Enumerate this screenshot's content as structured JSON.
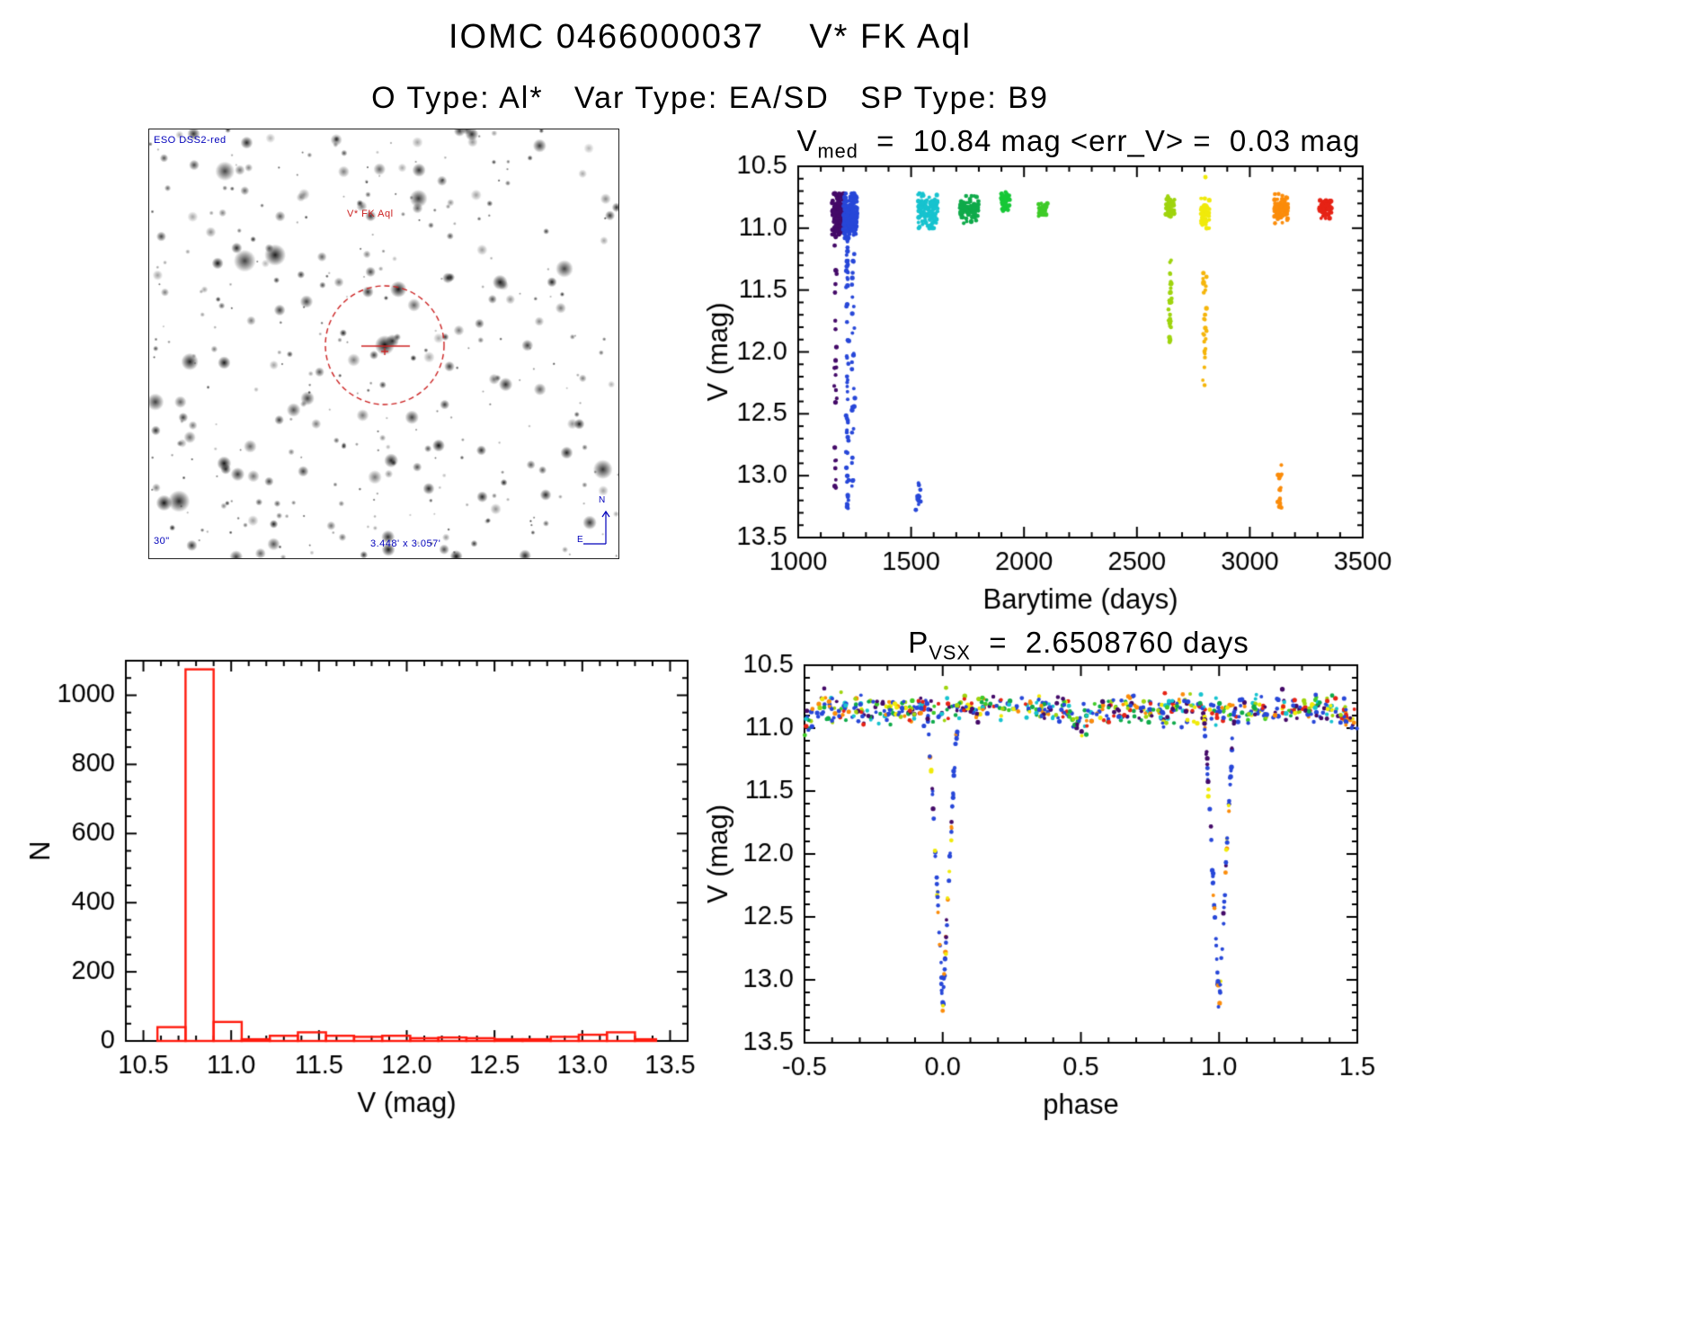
{
  "page": {
    "title": "IOMC 0466000037    V* FK Aql",
    "subtitle": "O Type: Al*   Var Type: EA/SD   SP Type: B9"
  },
  "finding_chart": {
    "survey_label": "ESO DSS2-red",
    "target_label": "V* FK Aql",
    "scale_label": "30\"",
    "size_label": "3.448' x 3.057'",
    "compass": {
      "north": "N",
      "east": "E"
    },
    "colors": {
      "annotation_blue": "#0000bb",
      "marker_red": "#cc2222"
    }
  },
  "chart_data": [
    {
      "type": "scatter",
      "panel": "lightcurve",
      "title_parts": {
        "base": "V",
        "sub": "med",
        "rest": "  =  10.84 mag <err_V> =  0.03 mag"
      },
      "xlabel": "Barytime (days)",
      "ylabel": "V (mag)",
      "xlim": [
        1000,
        3500
      ],
      "ylim": [
        10.5,
        13.5
      ],
      "y_axis_reversed": true,
      "xticks": [
        1000,
        1500,
        2000,
        2500,
        3000,
        3500
      ],
      "xtick_labels": [
        "1000",
        "1500",
        "2000",
        "2500",
        "3000",
        "3500"
      ],
      "x_minor_step": 100,
      "yticks": [
        10.5,
        11.0,
        11.5,
        12.0,
        12.5,
        13.0,
        13.5
      ],
      "ytick_labels": [
        "10.5",
        "11.0",
        "11.5",
        "12.0",
        "12.5",
        "13.0",
        "13.5"
      ],
      "y_minor_step": 0.1,
      "clusters": [
        {
          "color": "#440a68",
          "x0": 1150,
          "x1": 1205,
          "y0": 10.72,
          "y1": 11.05,
          "n": 180,
          "kind": "band"
        },
        {
          "color": "#440a68",
          "x0": 1158,
          "x1": 1172,
          "y0": 11.0,
          "y1": 12.55,
          "n": 22,
          "kind": "streak"
        },
        {
          "color": "#440a68",
          "x0": 1160,
          "x1": 1170,
          "y0": 12.75,
          "y1": 13.1,
          "n": 7,
          "kind": "streak"
        },
        {
          "color": "#2747d8",
          "x0": 1200,
          "x1": 1262,
          "y0": 10.72,
          "y1": 11.08,
          "n": 200,
          "kind": "band"
        },
        {
          "color": "#2747d8",
          "x0": 1212,
          "x1": 1224,
          "y0": 11.0,
          "y1": 13.28,
          "n": 55,
          "kind": "streak"
        },
        {
          "color": "#2747d8",
          "x0": 1238,
          "x1": 1252,
          "y0": 11.0,
          "y1": 13.12,
          "n": 32,
          "kind": "streak"
        },
        {
          "color": "#2747d8",
          "x0": 1520,
          "x1": 1542,
          "y0": 13.05,
          "y1": 13.3,
          "n": 12,
          "kind": "streak"
        },
        {
          "color": "#17c3cf",
          "x0": 1530,
          "x1": 1620,
          "y0": 10.72,
          "y1": 11.0,
          "n": 110,
          "kind": "band"
        },
        {
          "color": "#0faa4a",
          "x0": 1716,
          "x1": 1798,
          "y0": 10.74,
          "y1": 10.96,
          "n": 90,
          "kind": "band"
        },
        {
          "color": "#17c837",
          "x0": 1898,
          "x1": 1936,
          "y0": 10.7,
          "y1": 10.86,
          "n": 40,
          "kind": "band"
        },
        {
          "color": "#3ecb28",
          "x0": 2064,
          "x1": 2106,
          "y0": 10.8,
          "y1": 10.92,
          "n": 35,
          "kind": "band"
        },
        {
          "color": "#9fd40e",
          "x0": 2628,
          "x1": 2668,
          "y0": 10.74,
          "y1": 10.92,
          "n": 50,
          "kind": "band"
        },
        {
          "color": "#9fd40e",
          "x0": 2640,
          "x1": 2656,
          "y0": 11.25,
          "y1": 11.95,
          "n": 28,
          "kind": "streak"
        },
        {
          "color": "#f0ea0a",
          "x0": 2782,
          "x1": 2822,
          "y0": 10.76,
          "y1": 11.0,
          "n": 50,
          "kind": "band"
        },
        {
          "color": "#f0ea0a",
          "x0": 2800,
          "x1": 2806,
          "y0": 10.58,
          "y1": 10.62,
          "n": 2,
          "kind": "streak"
        },
        {
          "color": "#f5b50a",
          "x0": 2792,
          "x1": 2808,
          "y0": 11.3,
          "y1": 12.42,
          "n": 26,
          "kind": "streak"
        },
        {
          "color": "#fb8c0a",
          "x0": 3108,
          "x1": 3170,
          "y0": 10.72,
          "y1": 10.96,
          "n": 80,
          "kind": "band"
        },
        {
          "color": "#fb8c0a",
          "x0": 3124,
          "x1": 3142,
          "y0": 12.9,
          "y1": 13.26,
          "n": 20,
          "kind": "streak"
        },
        {
          "color": "#e62315",
          "x0": 3308,
          "x1": 3362,
          "y0": 10.74,
          "y1": 10.92,
          "n": 70,
          "kind": "band"
        }
      ]
    },
    {
      "type": "bar",
      "panel": "histogram",
      "xlabel": "V (mag)",
      "ylabel": "N",
      "xlim": [
        10.4,
        13.6
      ],
      "ylim": [
        0,
        1100
      ],
      "xticks": [
        10.5,
        11.0,
        11.5,
        12.0,
        12.5,
        13.0,
        13.5
      ],
      "xtick_labels": [
        "10.5",
        "11.0",
        "11.5",
        "12.0",
        "12.5",
        "13.0",
        "13.5"
      ],
      "x_minor_step": 0.1,
      "yticks": [
        0,
        200,
        400,
        600,
        800,
        1000
      ],
      "ytick_labels": [
        "0",
        "200",
        "400",
        "600",
        "800",
        "1000"
      ],
      "y_minor_step": 50,
      "color": "#ff1a0d",
      "bins": [
        {
          "x0": 10.58,
          "x1": 10.74,
          "n": 40
        },
        {
          "x0": 10.74,
          "x1": 10.9,
          "n": 1075
        },
        {
          "x0": 10.9,
          "x1": 11.06,
          "n": 55
        },
        {
          "x0": 11.06,
          "x1": 11.22,
          "n": 5
        },
        {
          "x0": 11.22,
          "x1": 11.38,
          "n": 15
        },
        {
          "x0": 11.38,
          "x1": 11.54,
          "n": 25
        },
        {
          "x0": 11.54,
          "x1": 11.7,
          "n": 15
        },
        {
          "x0": 11.7,
          "x1": 11.86,
          "n": 12
        },
        {
          "x0": 11.86,
          "x1": 12.02,
          "n": 15
        },
        {
          "x0": 12.02,
          "x1": 12.18,
          "n": 8
        },
        {
          "x0": 12.18,
          "x1": 12.34,
          "n": 10
        },
        {
          "x0": 12.34,
          "x1": 12.5,
          "n": 8
        },
        {
          "x0": 12.5,
          "x1": 12.66,
          "n": 5
        },
        {
          "x0": 12.66,
          "x1": 12.82,
          "n": 5
        },
        {
          "x0": 12.82,
          "x1": 12.98,
          "n": 12
        },
        {
          "x0": 12.98,
          "x1": 13.14,
          "n": 18
        },
        {
          "x0": 13.14,
          "x1": 13.3,
          "n": 25
        },
        {
          "x0": 13.3,
          "x1": 13.42,
          "n": 5
        }
      ]
    },
    {
      "type": "scatter",
      "panel": "phase",
      "title_parts": {
        "base": "P",
        "sub": "VSX",
        "rest": "  =  2.6508760 days"
      },
      "xlabel": "phase",
      "ylabel": "V (mag)",
      "xlim": [
        -0.5,
        1.5
      ],
      "ylim": [
        10.5,
        13.5
      ],
      "y_axis_reversed": true,
      "xticks": [
        -0.5,
        0.0,
        0.5,
        1.0,
        1.5
      ],
      "xtick_labels": [
        "-0.5",
        "0.0",
        "0.5",
        "1.0",
        "1.5"
      ],
      "x_minor_step": 0.1,
      "yticks": [
        10.5,
        11.0,
        11.5,
        12.0,
        12.5,
        13.0,
        13.5
      ],
      "ytick_labels": [
        "10.5",
        "11.0",
        "11.5",
        "12.0",
        "12.5",
        "13.0",
        "13.5"
      ],
      "y_minor_step": 0.1,
      "model": {
        "baseline_mag": 10.85,
        "scatter_mag": 0.055,
        "n_band": 680,
        "band_palette": [
          {
            "c": "#440a68",
            "w": 0.12
          },
          {
            "c": "#2747d8",
            "w": 0.26
          },
          {
            "c": "#17c3cf",
            "w": 0.1
          },
          {
            "c": "#0faa4a",
            "w": 0.1
          },
          {
            "c": "#3ecb28",
            "w": 0.06
          },
          {
            "c": "#9fd40e",
            "w": 0.08
          },
          {
            "c": "#f0ea0a",
            "w": 0.08
          },
          {
            "c": "#fb8c0a",
            "w": 0.1
          },
          {
            "c": "#e62315",
            "w": 0.1
          }
        ],
        "primary_eclipse": {
          "phases": [
            0.0,
            1.0
          ],
          "top_mag": 10.9,
          "depth_mag": 2.35,
          "half_width_phase": 0.055,
          "n_points_each": 80
        },
        "secondary_eclipse": {
          "phase": 0.5,
          "depth_mag": 0.13,
          "half_width_phase": 0.055
        },
        "eclipse_palette": [
          {
            "c": "#2747d8",
            "w": 0.62
          },
          {
            "c": "#fb8c0a",
            "w": 0.16
          },
          {
            "c": "#440a68",
            "w": 0.1
          },
          {
            "c": "#f0ea0a",
            "w": 0.12
          }
        ]
      }
    }
  ]
}
